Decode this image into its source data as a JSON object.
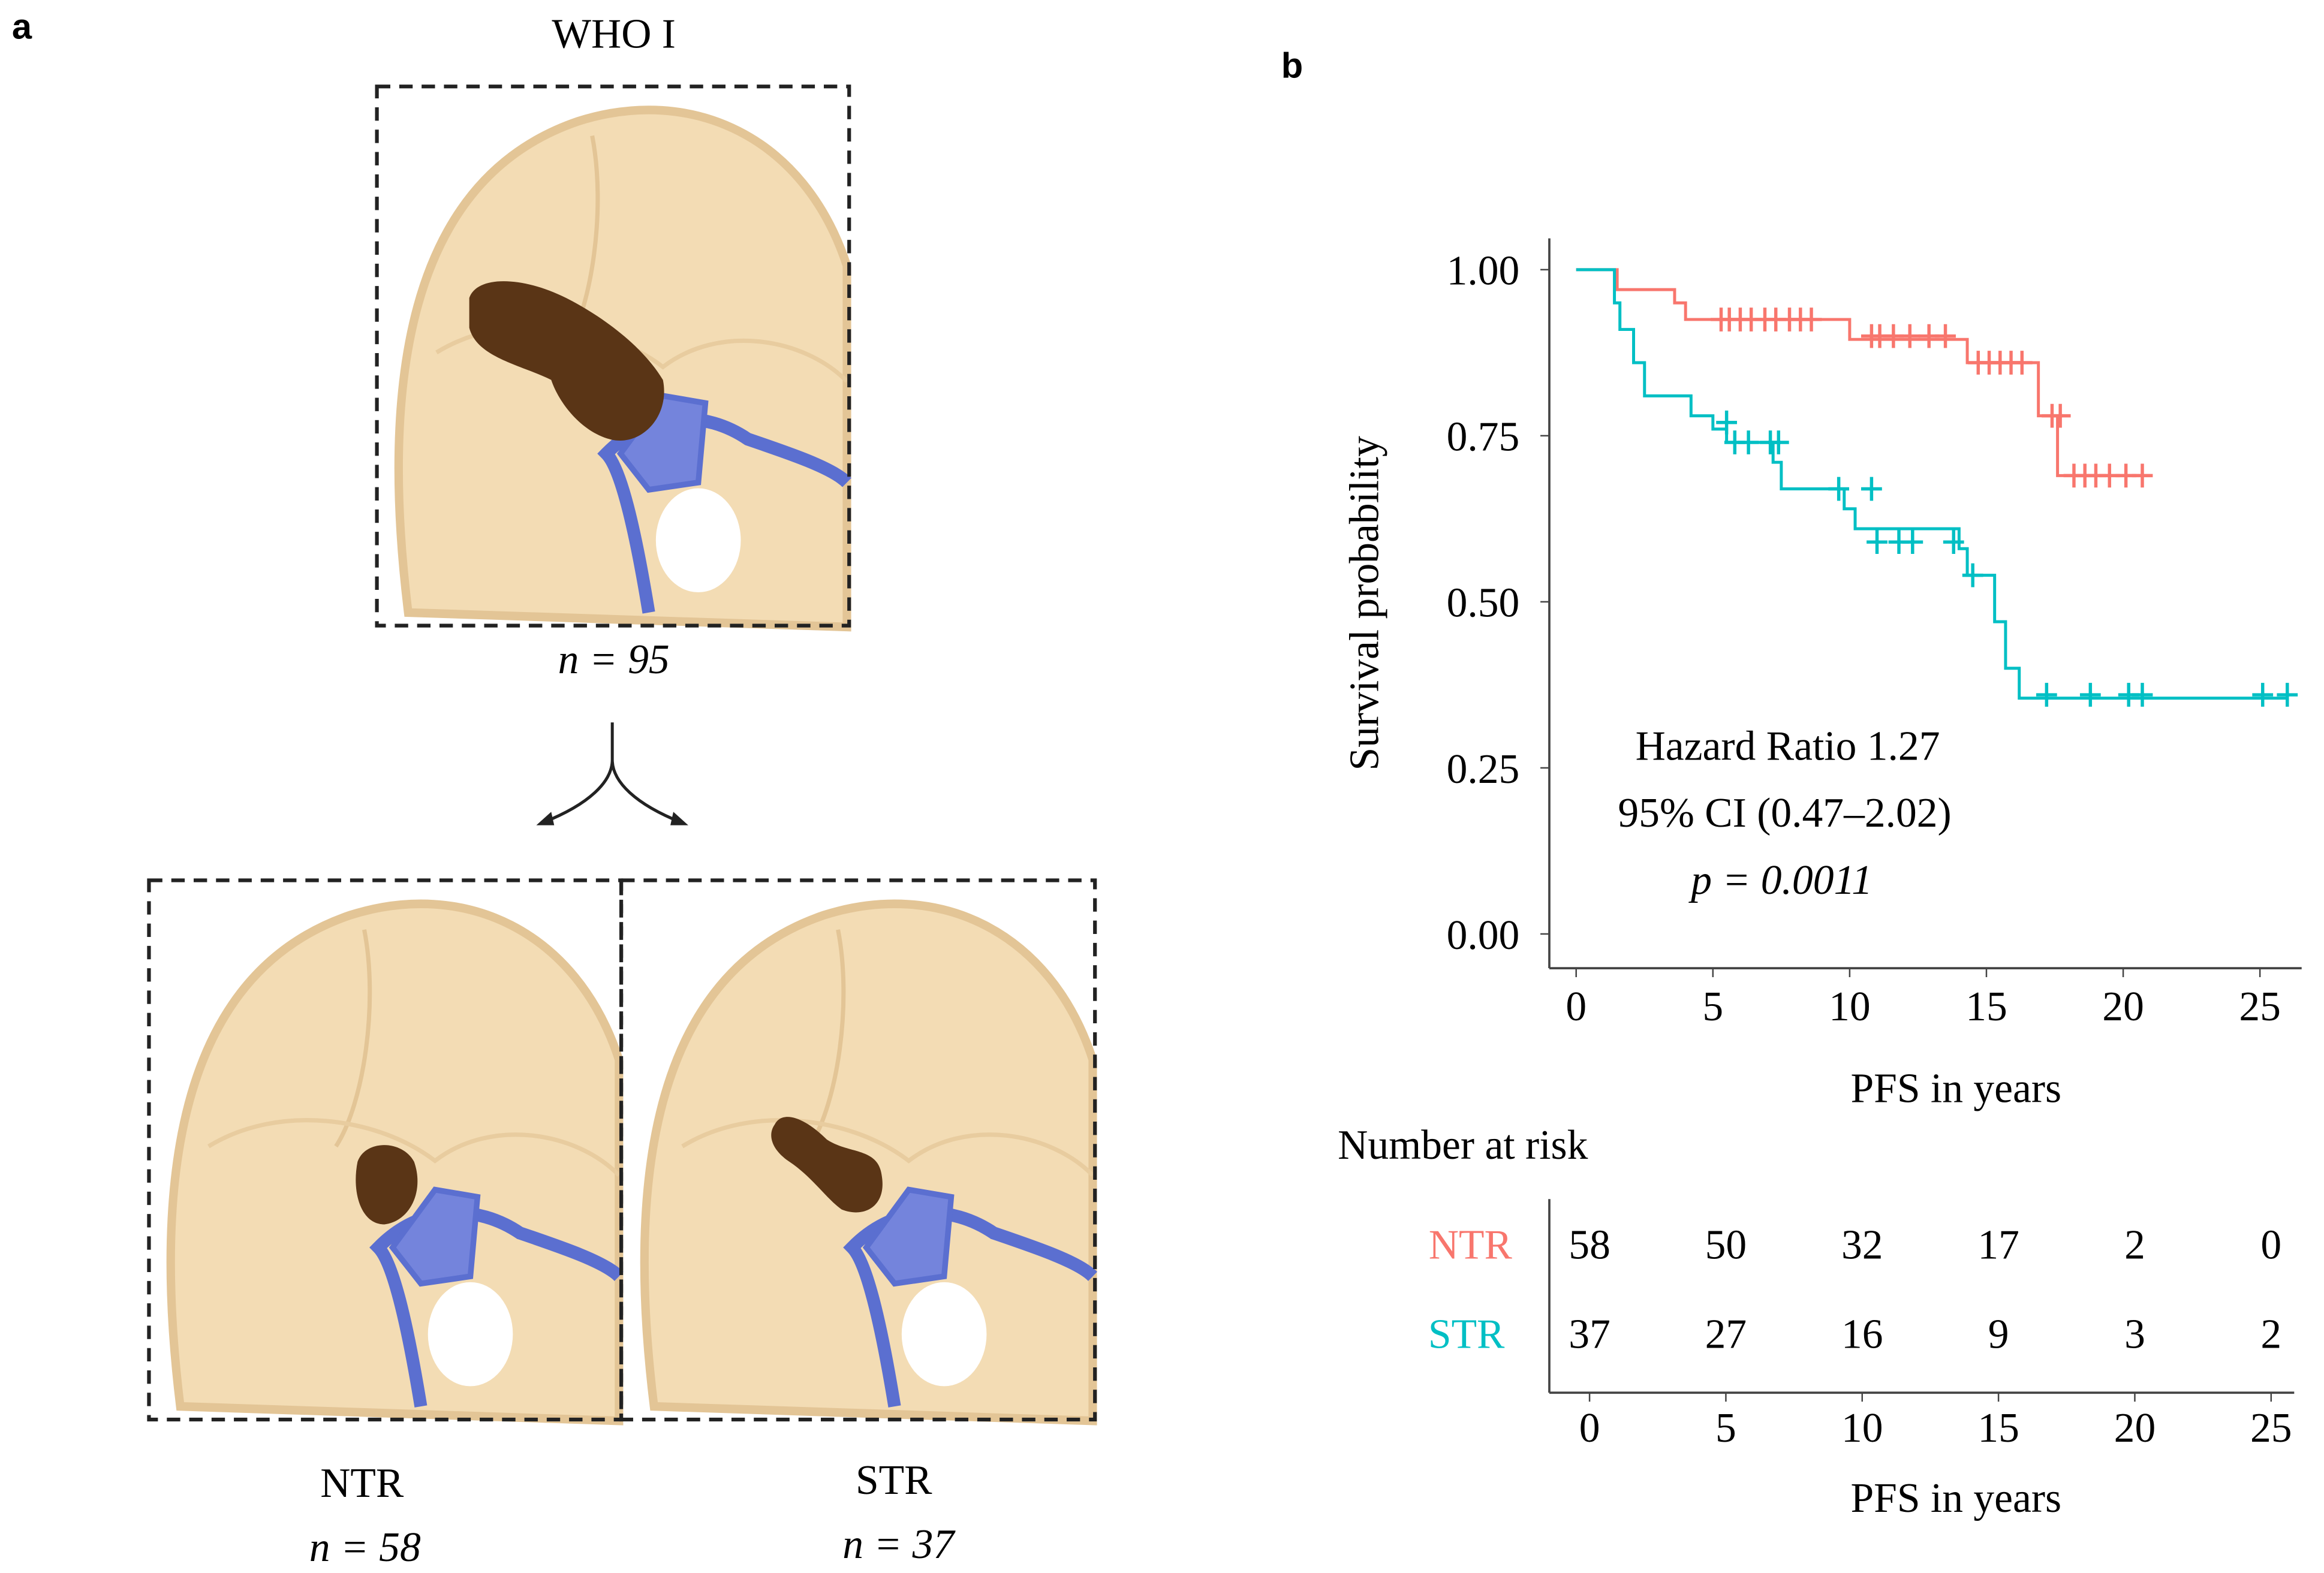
{
  "panel_a": {
    "label": "a",
    "top": {
      "title": "WHO I",
      "n": "n = 95"
    },
    "left": {
      "title": "NTR",
      "n": "n = 58"
    },
    "right": {
      "title": "STR",
      "n": "n = 37"
    },
    "colors": {
      "bone": "#f3dcb4",
      "bone_edge": "#e3c596",
      "vein": "#5b6fd0",
      "tumor": "#5a3516"
    }
  },
  "panel_b": {
    "label": "b",
    "annotation": {
      "hr": "Hazard Ratio 1.27",
      "ci": "95% CI (0.47–2.02)",
      "p": "p = 0.0011"
    },
    "risk_table": {
      "title": "Number at risk",
      "rows": [
        {
          "name": "NTR",
          "color": "#f8766d",
          "values": [
            "58",
            "50",
            "32",
            "17",
            "2",
            "0"
          ]
        },
        {
          "name": "STR",
          "color": "#00bfc4",
          "values": [
            "37",
            "27",
            "16",
            "9",
            "3",
            "2"
          ]
        }
      ],
      "x_ticks": [
        "0",
        "5",
        "10",
        "15",
        "20",
        "25"
      ],
      "xlabel": "PFS in years"
    }
  },
  "chart_data": {
    "type": "line",
    "title": "",
    "xlabel": "PFS in years",
    "ylabel": "Survival probability",
    "xlim": [
      0,
      26.5
    ],
    "ylim": [
      0,
      1
    ],
    "x_ticks": [
      "0",
      "5",
      "10",
      "15",
      "20",
      "25"
    ],
    "y_ticks": [
      "0.00",
      "0.25",
      "0.50",
      "0.75",
      "1.00"
    ],
    "grid": false,
    "series": [
      {
        "name": "NTR",
        "color": "#f8766d",
        "steps": [
          [
            0,
            1
          ],
          [
            1.5,
            0.97
          ],
          [
            3.6,
            0.95
          ],
          [
            4,
            0.925
          ],
          [
            10,
            0.895
          ],
          [
            14.3,
            0.86
          ],
          [
            16.9,
            0.78
          ],
          [
            17.6,
            0.69
          ],
          [
            21,
            0.69
          ]
        ],
        "censored": [
          [
            5.3,
            0.925
          ],
          [
            5.6,
            0.925
          ],
          [
            6,
            0.925
          ],
          [
            6.4,
            0.925
          ],
          [
            6.9,
            0.925
          ],
          [
            7.3,
            0.925
          ],
          [
            7.8,
            0.925
          ],
          [
            8.2,
            0.925
          ],
          [
            8.6,
            0.925
          ],
          [
            10.8,
            0.9
          ],
          [
            11.1,
            0.9
          ],
          [
            11.6,
            0.9
          ],
          [
            12.2,
            0.9
          ],
          [
            12.9,
            0.9
          ],
          [
            13.5,
            0.9
          ],
          [
            14.7,
            0.86
          ],
          [
            15.1,
            0.86
          ],
          [
            15.5,
            0.86
          ],
          [
            15.9,
            0.86
          ],
          [
            16.3,
            0.86
          ],
          [
            17.4,
            0.78
          ],
          [
            17.7,
            0.78
          ],
          [
            18.2,
            0.69
          ],
          [
            18.6,
            0.69
          ],
          [
            19,
            0.69
          ],
          [
            19.5,
            0.69
          ],
          [
            20.1,
            0.69
          ],
          [
            20.7,
            0.69
          ]
        ]
      },
      {
        "name": "STR",
        "color": "#00bfc4",
        "steps": [
          [
            0,
            1
          ],
          [
            1.4,
            0.95
          ],
          [
            1.6,
            0.91
          ],
          [
            2.1,
            0.86
          ],
          [
            2.5,
            0.81
          ],
          [
            4.2,
            0.78
          ],
          [
            5,
            0.76
          ],
          [
            5.5,
            0.74
          ],
          [
            7.2,
            0.71
          ],
          [
            7.5,
            0.67
          ],
          [
            9.8,
            0.64
          ],
          [
            10.2,
            0.61
          ],
          [
            14,
            0.58
          ],
          [
            14.3,
            0.54
          ],
          [
            15.3,
            0.47
          ],
          [
            15.7,
            0.4
          ],
          [
            16.2,
            0.355
          ],
          [
            26,
            0.355
          ]
        ],
        "censored": [
          [
            5.5,
            0.77
          ],
          [
            5.8,
            0.74
          ],
          [
            6.3,
            0.74
          ],
          [
            7.1,
            0.74
          ],
          [
            7.4,
            0.74
          ],
          [
            9.6,
            0.67
          ],
          [
            10.8,
            0.67
          ],
          [
            11,
            0.59
          ],
          [
            11.8,
            0.59
          ],
          [
            12.3,
            0.59
          ],
          [
            13.8,
            0.59
          ],
          [
            14.5,
            0.54
          ],
          [
            17.2,
            0.36
          ],
          [
            18.8,
            0.36
          ],
          [
            20.2,
            0.36
          ],
          [
            20.7,
            0.36
          ],
          [
            25.1,
            0.36
          ],
          [
            26,
            0.36
          ]
        ]
      }
    ]
  }
}
